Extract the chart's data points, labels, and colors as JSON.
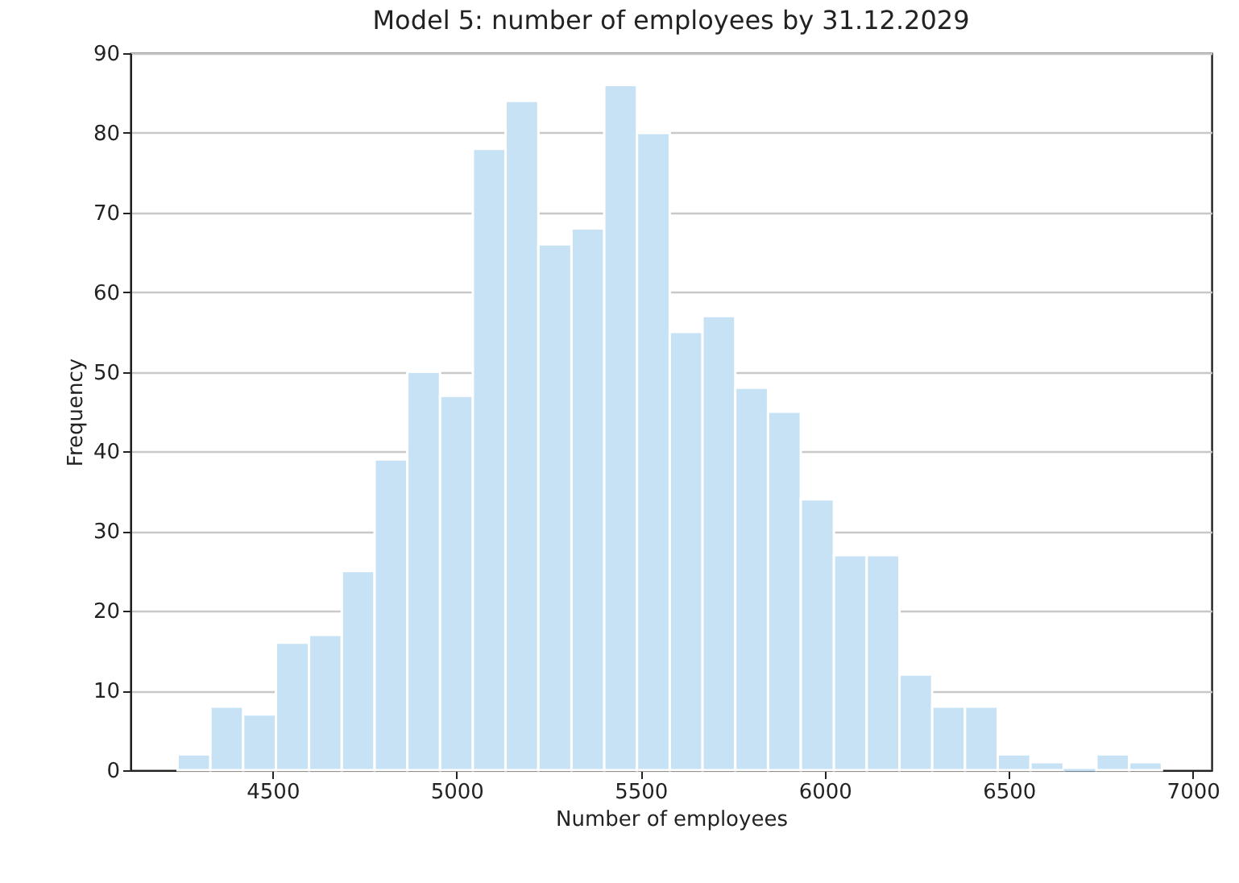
{
  "chart_data": {
    "type": "histogram",
    "title": "Model 5: number of employees by 31.12.2029",
    "xlabel": "Number of employees",
    "ylabel": "Frequency",
    "bins": [
      4242,
      4331,
      4420,
      4509,
      4599,
      4688,
      4777,
      4866,
      4955,
      5044,
      5133,
      5222,
      5312,
      5401,
      5490,
      5579,
      5668,
      5757,
      5846,
      5935,
      6025,
      6114,
      6203,
      6292,
      6381,
      6470,
      6559,
      6649,
      6738,
      6827,
      6916
    ],
    "values": [
      2,
      8,
      7,
      16,
      17,
      25,
      39,
      50,
      47,
      78,
      84,
      66,
      68,
      86,
      80,
      55,
      57,
      48,
      45,
      34,
      27,
      27,
      12,
      8,
      8,
      2,
      1,
      0,
      2,
      1
    ],
    "color": "#c6e2f4",
    "xlim": [
      4114,
      7051
    ],
    "xticks": [
      4500,
      5000,
      5500,
      6000,
      6500,
      7000
    ],
    "ylim": [
      0,
      90
    ],
    "yticks": [
      0,
      10,
      20,
      30,
      40,
      50,
      60,
      70,
      80,
      90
    ],
    "grid": "y"
  }
}
